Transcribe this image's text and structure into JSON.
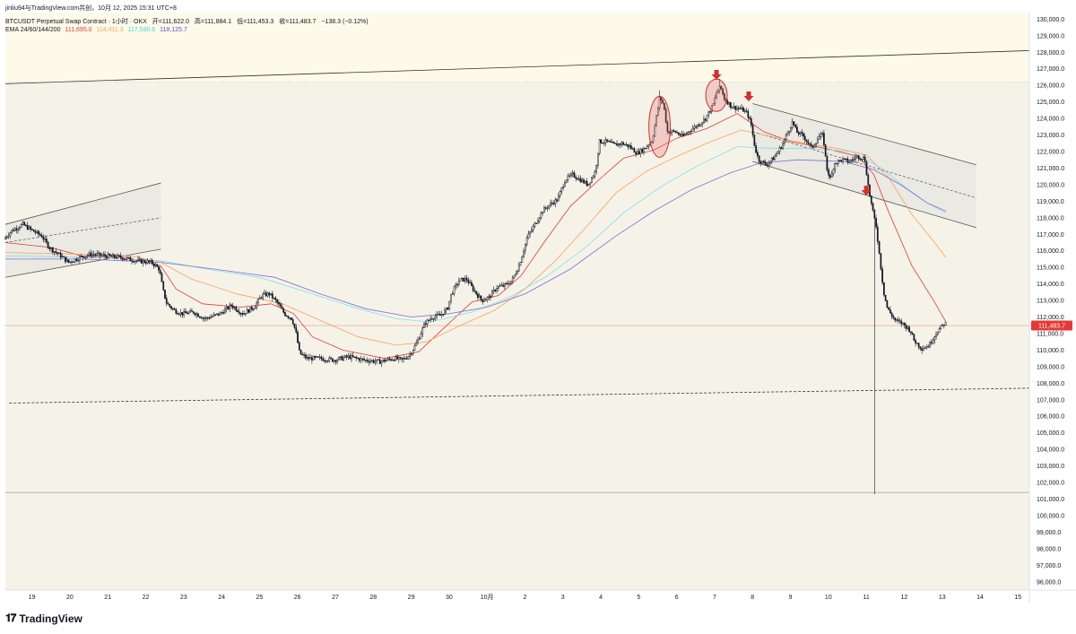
{
  "header": {
    "attribution": "jinliu94与TradingView.com共创，10月 12, 2025 15:31 UTC+8",
    "symbol": "BTCUSDT Perpetual Swap Contract · 1小时 · OKX",
    "ohlc": {
      "open_label": "开",
      "open": "=111,622.0",
      "high_label": "高",
      "high": "=111,884.1",
      "low_label": "低",
      "low": "=111,453.3",
      "close_label": "收",
      "close": "=111,483.7",
      "change": "−138.3 (−0.12%)"
    },
    "ema_label": "EMA 24/60/144/200",
    "ema_values": [
      "111,695.0",
      "114,411.3",
      "117,580.6",
      "118,125.7"
    ]
  },
  "brand": {
    "logo_text": "TradingView"
  },
  "colors": {
    "background": "#f5f3e8",
    "upper_zone": "#fdfaea",
    "candle": "#131722",
    "ema24": "#e53935",
    "ema60": "#f7a35c",
    "ema144": "#80deea",
    "ema200": "#7e6fd6",
    "price_line": "#f1948a",
    "price_tag": "#e53935",
    "marker": "#d32f2f"
  },
  "chart_data": {
    "type": "candlestick",
    "title": "BTCUSDT Perpetual Swap Contract · 1小时 · OKX",
    "timeframe": "1h",
    "y_axis": {
      "ylim": [
        95500,
        130400
      ],
      "ticks": [
        96000,
        97000,
        98000,
        99000,
        100000,
        101000,
        102000,
        103000,
        104000,
        105000,
        106000,
        107000,
        108000,
        109000,
        110000,
        111000,
        112000,
        113000,
        114000,
        115000,
        116000,
        117000,
        118000,
        119000,
        120000,
        121000,
        122000,
        123000,
        124000,
        125000,
        126000,
        127000,
        128000,
        129000,
        130000
      ],
      "tick_labels": [
        "96,000.0",
        "97,000.0",
        "98,000.0",
        "99,000.0",
        "100,000.0",
        "101,000.0",
        "102,000.0",
        "103,000.0",
        "104,000.0",
        "105,000.0",
        "106,000.0",
        "107,000.0",
        "108,000.0",
        "109,000.0",
        "110,000.0",
        "111,000.0",
        "112,000.0",
        "113,000.0",
        "114,000.0",
        "115,000.0",
        "116,000.0",
        "117,000.0",
        "118,000.0",
        "119,000.0",
        "120,000.0",
        "121,000.0",
        "122,000.0",
        "123,000.0",
        "124,000.0",
        "125,000.0",
        "126,000.0",
        "127,000.0",
        "128,000.0",
        "129,000.0",
        "130,000.0"
      ],
      "current_price": 111483.7,
      "current_price_label": "111,483.7"
    },
    "x_axis": {
      "xlim": [
        18.3,
        45.3
      ],
      "ticks": [
        19,
        20,
        21,
        22,
        23,
        24,
        25,
        26,
        27,
        28,
        29,
        30,
        31,
        32,
        33,
        34,
        35,
        36,
        37,
        38,
        39,
        40,
        41,
        42,
        43,
        44,
        45
      ],
      "tick_labels": [
        "19",
        "20",
        "21",
        "22",
        "23",
        "24",
        "25",
        "26",
        "27",
        "28",
        "29",
        "30",
        "10月",
        "2",
        "3",
        "4",
        "5",
        "6",
        "7",
        "8",
        "9",
        "10",
        "11",
        "12",
        "13",
        "14",
        "15"
      ]
    },
    "price_path": [
      [
        18.3,
        116700
      ],
      [
        18.5,
        117200
      ],
      [
        18.8,
        117600
      ],
      [
        19.0,
        117300
      ],
      [
        19.3,
        116900
      ],
      [
        19.5,
        116200
      ],
      [
        19.8,
        115700
      ],
      [
        20.0,
        115300
      ],
      [
        20.3,
        115600
      ],
      [
        20.6,
        115800
      ],
      [
        21.0,
        115700
      ],
      [
        21.4,
        115600
      ],
      [
        21.8,
        115400
      ],
      [
        22.2,
        115300
      ],
      [
        22.4,
        114900
      ],
      [
        22.5,
        113600
      ],
      [
        22.6,
        112800
      ],
      [
        22.8,
        112400
      ],
      [
        23.0,
        112200
      ],
      [
        23.3,
        112300
      ],
      [
        23.6,
        111900
      ],
      [
        24.0,
        112200
      ],
      [
        24.3,
        112700
      ],
      [
        24.6,
        112200
      ],
      [
        24.9,
        112600
      ],
      [
        25.1,
        113300
      ],
      [
        25.3,
        113400
      ],
      [
        25.5,
        112900
      ],
      [
        25.7,
        112200
      ],
      [
        25.9,
        111900
      ],
      [
        26.0,
        111100
      ],
      [
        26.1,
        109800
      ],
      [
        26.3,
        109500
      ],
      [
        26.6,
        109500
      ],
      [
        27.0,
        109400
      ],
      [
        27.4,
        109600
      ],
      [
        27.8,
        109400
      ],
      [
        28.2,
        109300
      ],
      [
        28.6,
        109500
      ],
      [
        28.8,
        109400
      ],
      [
        29.0,
        109700
      ],
      [
        29.2,
        110500
      ],
      [
        29.4,
        111600
      ],
      [
        29.6,
        112000
      ],
      [
        29.8,
        112100
      ],
      [
        30.0,
        112500
      ],
      [
        30.1,
        113400
      ],
      [
        30.3,
        114200
      ],
      [
        30.5,
        114300
      ],
      [
        30.7,
        113600
      ],
      [
        30.9,
        113000
      ],
      [
        31.1,
        113200
      ],
      [
        31.3,
        113800
      ],
      [
        31.5,
        113900
      ],
      [
        31.7,
        114200
      ],
      [
        31.9,
        115200
      ],
      [
        32.1,
        116800
      ],
      [
        32.3,
        117600
      ],
      [
        32.5,
        118400
      ],
      [
        32.7,
        118800
      ],
      [
        32.9,
        119100
      ],
      [
        33.1,
        120300
      ],
      [
        33.3,
        120600
      ],
      [
        33.5,
        120300
      ],
      [
        33.7,
        120000
      ],
      [
        33.9,
        120800
      ],
      [
        34.0,
        122600
      ],
      [
        34.2,
        122600
      ],
      [
        34.4,
        122400
      ],
      [
        34.6,
        122500
      ],
      [
        34.8,
        122300
      ],
      [
        35.0,
        121900
      ],
      [
        35.2,
        122200
      ],
      [
        35.4,
        122700
      ],
      [
        35.5,
        124000
      ],
      [
        35.6,
        125300
      ],
      [
        35.7,
        124800
      ],
      [
        35.8,
        123200
      ],
      [
        36.0,
        123200
      ],
      [
        36.2,
        122900
      ],
      [
        36.4,
        123300
      ],
      [
        36.6,
        123600
      ],
      [
        36.8,
        124000
      ],
      [
        37.0,
        124800
      ],
      [
        37.1,
        125600
      ],
      [
        37.2,
        125900
      ],
      [
        37.3,
        125200
      ],
      [
        37.5,
        124700
      ],
      [
        37.7,
        124600
      ],
      [
        37.8,
        124500
      ],
      [
        37.9,
        124300
      ],
      [
        38.0,
        123700
      ],
      [
        38.1,
        122300
      ],
      [
        38.2,
        121500
      ],
      [
        38.4,
        121200
      ],
      [
        38.6,
        121600
      ],
      [
        38.8,
        122300
      ],
      [
        39.0,
        123300
      ],
      [
        39.1,
        123800
      ],
      [
        39.2,
        123200
      ],
      [
        39.4,
        122900
      ],
      [
        39.6,
        122200
      ],
      [
        39.8,
        122900
      ],
      [
        39.9,
        123000
      ],
      [
        40.0,
        121000
      ],
      [
        40.1,
        120300
      ],
      [
        40.2,
        121300
      ],
      [
        40.4,
        121500
      ],
      [
        40.6,
        121400
      ],
      [
        40.8,
        121700
      ],
      [
        41.0,
        121600
      ],
      [
        41.1,
        119800
      ],
      [
        41.2,
        118500
      ],
      [
        41.3,
        117500
      ],
      [
        41.4,
        115500
      ],
      [
        41.5,
        113500
      ],
      [
        41.6,
        112500
      ],
      [
        41.8,
        111800
      ],
      [
        42.0,
        111600
      ],
      [
        42.2,
        111200
      ],
      [
        42.3,
        110600
      ],
      [
        42.5,
        110100
      ],
      [
        42.7,
        110300
      ],
      [
        42.9,
        111100
      ],
      [
        43.1,
        111600
      ]
    ],
    "ohlc_extremes": [
      [
        41.2,
        101300
      ],
      [
        35.55,
        125700
      ],
      [
        37.15,
        126400
      ]
    ],
    "series": [
      {
        "name": "EMA 24",
        "values": [
          [
            18.3,
            116500
          ],
          [
            19.5,
            116200
          ],
          [
            20.3,
            115700
          ],
          [
            21.5,
            115600
          ],
          [
            22.4,
            115100
          ],
          [
            22.8,
            113700
          ],
          [
            23.5,
            112800
          ],
          [
            24.5,
            112600
          ],
          [
            25.3,
            112800
          ],
          [
            25.9,
            112200
          ],
          [
            26.4,
            110800
          ],
          [
            27.2,
            110000
          ],
          [
            28.3,
            109500
          ],
          [
            29.2,
            109900
          ],
          [
            29.8,
            111200
          ],
          [
            30.6,
            112900
          ],
          [
            31.3,
            113300
          ],
          [
            31.9,
            114500
          ],
          [
            32.5,
            116500
          ],
          [
            33.2,
            118700
          ],
          [
            34.0,
            120400
          ],
          [
            34.6,
            121600
          ],
          [
            35.4,
            122100
          ],
          [
            36.0,
            122800
          ],
          [
            36.8,
            123400
          ],
          [
            37.6,
            124300
          ],
          [
            38.3,
            123200
          ],
          [
            39.0,
            122600
          ],
          [
            39.9,
            122200
          ],
          [
            40.8,
            121700
          ],
          [
            41.2,
            120600
          ],
          [
            41.6,
            118300
          ],
          [
            42.2,
            115100
          ],
          [
            42.8,
            112900
          ],
          [
            43.1,
            111700
          ]
        ]
      },
      {
        "name": "EMA 60",
        "values": [
          [
            18.3,
            115900
          ],
          [
            20.2,
            115800
          ],
          [
            21.6,
            115700
          ],
          [
            22.4,
            115300
          ],
          [
            23.2,
            114300
          ],
          [
            24.4,
            113400
          ],
          [
            25.6,
            112800
          ],
          [
            26.5,
            111900
          ],
          [
            27.6,
            110800
          ],
          [
            28.6,
            110300
          ],
          [
            29.4,
            110500
          ],
          [
            30.3,
            111500
          ],
          [
            31.2,
            112400
          ],
          [
            32.0,
            113700
          ],
          [
            32.8,
            115400
          ],
          [
            33.6,
            117400
          ],
          [
            34.4,
            119500
          ],
          [
            35.2,
            120800
          ],
          [
            36.0,
            121700
          ],
          [
            36.9,
            122600
          ],
          [
            37.7,
            123300
          ],
          [
            38.5,
            122900
          ],
          [
            39.4,
            122500
          ],
          [
            40.2,
            122200
          ],
          [
            41.0,
            121800
          ],
          [
            41.6,
            120400
          ],
          [
            42.2,
            118200
          ],
          [
            42.8,
            116500
          ],
          [
            43.1,
            115600
          ]
        ]
      },
      {
        "name": "EMA 144",
        "values": [
          [
            18.3,
            115700
          ],
          [
            20.6,
            115600
          ],
          [
            22.4,
            115400
          ],
          [
            23.6,
            114900
          ],
          [
            25.0,
            114400
          ],
          [
            26.4,
            113400
          ],
          [
            27.6,
            112500
          ],
          [
            28.6,
            111900
          ],
          [
            29.5,
            111700
          ],
          [
            30.6,
            112300
          ],
          [
            31.6,
            113200
          ],
          [
            32.6,
            114500
          ],
          [
            33.6,
            116200
          ],
          [
            34.6,
            118300
          ],
          [
            35.6,
            119900
          ],
          [
            36.6,
            121200
          ],
          [
            37.6,
            122300
          ],
          [
            38.4,
            122200
          ],
          [
            39.4,
            122200
          ],
          [
            40.6,
            122000
          ],
          [
            41.4,
            121000
          ],
          [
            42.0,
            119900
          ],
          [
            42.6,
            118900
          ],
          [
            43.1,
            118300
          ]
        ]
      },
      {
        "name": "EMA 200",
        "values": [
          [
            18.3,
            115500
          ],
          [
            20.4,
            115500
          ],
          [
            22.4,
            115300
          ],
          [
            23.8,
            114900
          ],
          [
            25.4,
            114400
          ],
          [
            26.6,
            113400
          ],
          [
            27.8,
            112500
          ],
          [
            29.0,
            112000
          ],
          [
            30.0,
            112200
          ],
          [
            31.0,
            112600
          ],
          [
            32.0,
            113400
          ],
          [
            33.2,
            114900
          ],
          [
            34.4,
            116900
          ],
          [
            35.4,
            118400
          ],
          [
            36.4,
            119700
          ],
          [
            37.4,
            120700
          ],
          [
            38.2,
            121300
          ],
          [
            39.2,
            121500
          ],
          [
            40.4,
            121400
          ],
          [
            41.2,
            120900
          ],
          [
            41.9,
            120000
          ],
          [
            42.6,
            118900
          ],
          [
            43.1,
            118400
          ]
        ]
      }
    ],
    "trend_lines": [
      {
        "style": "solid",
        "from": [
          18.3,
          126100
        ],
        "to": [
          45.3,
          128100
        ]
      },
      {
        "style": "dashed",
        "from": [
          18.4,
          106800
        ],
        "to": [
          45.3,
          107700
        ]
      },
      {
        "style": "dotted",
        "from": [
          18.3,
          126200
        ],
        "to": [
          45.3,
          126200
        ]
      },
      {
        "style": "solid",
        "from": [
          18.3,
          101400
        ],
        "to": [
          45.3,
          101400
        ]
      }
    ],
    "channels": [
      {
        "upper": [
          [
            18.3,
            117600
          ],
          [
            22.4,
            120100
          ]
        ],
        "mid": [
          [
            18.3,
            116500
          ],
          [
            22.4,
            118000
          ]
        ],
        "lower": [
          [
            18.3,
            114400
          ],
          [
            22.4,
            116100
          ]
        ]
      },
      {
        "upper": [
          [
            38.0,
            124900
          ],
          [
            43.9,
            121200
          ]
        ],
        "mid": [
          [
            38.0,
            123200
          ],
          [
            43.9,
            119200
          ]
        ],
        "lower": [
          [
            38.0,
            121400
          ],
          [
            43.9,
            117400
          ]
        ]
      }
    ],
    "annotations": {
      "ellipses": [
        [
          35.55,
          123500
        ],
        [
          37.05,
          125400
        ]
      ],
      "down_arrows": [
        [
          37.05,
          126500
        ],
        [
          37.9,
          125200
        ],
        [
          41.0,
          119500
        ]
      ]
    },
    "grid": false,
    "legend": "top-left"
  }
}
